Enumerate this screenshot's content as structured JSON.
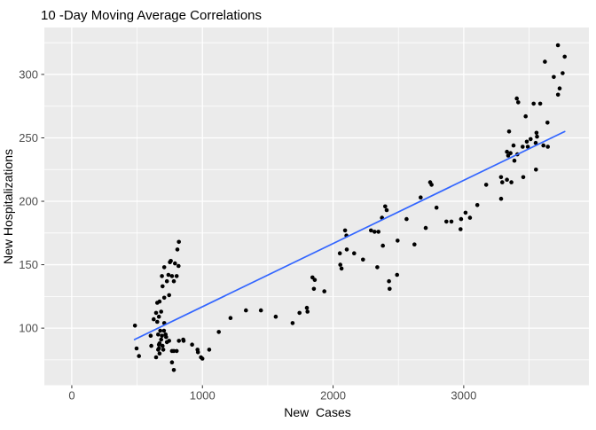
{
  "chart_data": {
    "type": "scatter",
    "title": "10 -Day Moving Average Correlations",
    "xlabel": "New  Cases",
    "ylabel": "New Hospitalizations",
    "xlim": [
      -210,
      3958
    ],
    "ylim": [
      55,
      337
    ],
    "x_ticks": [
      0,
      1000,
      2000,
      3000
    ],
    "x_minor_ticks": [
      500,
      1500,
      2500,
      3500
    ],
    "y_ticks": [
      100,
      150,
      200,
      250,
      300
    ],
    "y_minor_ticks": [
      75,
      125,
      175,
      225,
      275,
      325
    ],
    "grid": "on",
    "legend": "none",
    "style": "ggplot-gray",
    "colors": {
      "panel_bg": "#EBEBEB",
      "grid": "#FFFFFF",
      "point": "#000000",
      "trend_line": "#3366FF",
      "tick_label": "#4D4D4D",
      "tick_mark": "#333333",
      "title_text": "#000000"
    },
    "trend_line": {
      "type": "linear",
      "x1": 480,
      "y1": 91,
      "x2": 3773,
      "y2": 255
    },
    "points": [
      [
        484,
        102
      ],
      [
        496,
        84
      ],
      [
        514,
        78
      ],
      [
        604,
        94
      ],
      [
        609,
        86
      ],
      [
        627,
        107
      ],
      [
        645,
        112
      ],
      [
        645,
        77
      ],
      [
        654,
        120
      ],
      [
        654,
        105
      ],
      [
        661,
        95
      ],
      [
        661,
        83
      ],
      [
        667,
        109
      ],
      [
        667,
        87
      ],
      [
        667,
        84
      ],
      [
        672,
        121
      ],
      [
        672,
        88
      ],
      [
        672,
        80
      ],
      [
        677,
        98
      ],
      [
        684,
        113
      ],
      [
        684,
        91
      ],
      [
        690,
        141
      ],
      [
        690,
        94
      ],
      [
        695,
        133
      ],
      [
        695,
        86
      ],
      [
        700,
        83
      ],
      [
        706,
        98
      ],
      [
        708,
        148
      ],
      [
        708,
        124
      ],
      [
        708,
        104
      ],
      [
        718,
        95
      ],
      [
        722,
        93
      ],
      [
        728,
        137
      ],
      [
        728,
        89
      ],
      [
        740,
        142
      ],
      [
        745,
        126
      ],
      [
        745,
        90
      ],
      [
        751,
        152
      ],
      [
        758,
        153
      ],
      [
        767,
        141
      ],
      [
        767,
        82
      ],
      [
        767,
        73
      ],
      [
        781,
        137
      ],
      [
        781,
        82
      ],
      [
        781,
        67
      ],
      [
        790,
        151
      ],
      [
        803,
        141
      ],
      [
        803,
        82
      ],
      [
        808,
        162
      ],
      [
        817,
        149
      ],
      [
        820,
        168
      ],
      [
        820,
        90
      ],
      [
        853,
        91
      ],
      [
        856,
        90
      ],
      [
        921,
        87
      ],
      [
        962,
        83
      ],
      [
        966,
        81
      ],
      [
        989,
        77
      ],
      [
        1000,
        76
      ],
      [
        1052,
        83
      ],
      [
        1125,
        97
      ],
      [
        1215,
        108
      ],
      [
        1333,
        114
      ],
      [
        1448,
        114
      ],
      [
        1561,
        109
      ],
      [
        1690,
        104
      ],
      [
        1743,
        112
      ],
      [
        1799,
        116
      ],
      [
        1804,
        113
      ],
      [
        1842,
        140
      ],
      [
        1853,
        131
      ],
      [
        1860,
        138
      ],
      [
        1933,
        129
      ],
      [
        2052,
        159
      ],
      [
        2055,
        150
      ],
      [
        2065,
        147
      ],
      [
        2092,
        177
      ],
      [
        2102,
        173
      ],
      [
        2105,
        162
      ],
      [
        2161,
        159
      ],
      [
        2229,
        154
      ],
      [
        2290,
        177
      ],
      [
        2317,
        176
      ],
      [
        2338,
        148
      ],
      [
        2347,
        176
      ],
      [
        2374,
        187
      ],
      [
        2381,
        165
      ],
      [
        2399,
        196
      ],
      [
        2410,
        193
      ],
      [
        2428,
        137
      ],
      [
        2433,
        131
      ],
      [
        2490,
        142
      ],
      [
        2494,
        169
      ],
      [
        2562,
        186
      ],
      [
        2623,
        166
      ],
      [
        2670,
        203
      ],
      [
        2709,
        179
      ],
      [
        2743,
        215
      ],
      [
        2754,
        213
      ],
      [
        2792,
        195
      ],
      [
        2867,
        184
      ],
      [
        2906,
        184
      ],
      [
        2976,
        178
      ],
      [
        2980,
        186
      ],
      [
        3014,
        191
      ],
      [
        3048,
        187
      ],
      [
        3104,
        197
      ],
      [
        3172,
        213
      ],
      [
        3285,
        219
      ],
      [
        3286,
        202
      ],
      [
        3295,
        215
      ],
      [
        3331,
        239
      ],
      [
        3331,
        217
      ],
      [
        3340,
        236
      ],
      [
        3347,
        255
      ],
      [
        3358,
        238
      ],
      [
        3365,
        215
      ],
      [
        3381,
        244
      ],
      [
        3388,
        232
      ],
      [
        3406,
        281
      ],
      [
        3410,
        237
      ],
      [
        3417,
        278
      ],
      [
        3451,
        243
      ],
      [
        3456,
        219
      ],
      [
        3474,
        267
      ],
      [
        3483,
        247
      ],
      [
        3490,
        243
      ],
      [
        3512,
        249
      ],
      [
        3535,
        277
      ],
      [
        3551,
        246
      ],
      [
        3553,
        225
      ],
      [
        3557,
        254
      ],
      [
        3561,
        251
      ],
      [
        3585,
        277
      ],
      [
        3610,
        244
      ],
      [
        3621,
        310
      ],
      [
        3641,
        262
      ],
      [
        3644,
        243
      ],
      [
        3689,
        298
      ],
      [
        3721,
        323
      ],
      [
        3722,
        284
      ],
      [
        3734,
        289
      ],
      [
        3757,
        301
      ],
      [
        3773,
        314
      ]
    ]
  }
}
